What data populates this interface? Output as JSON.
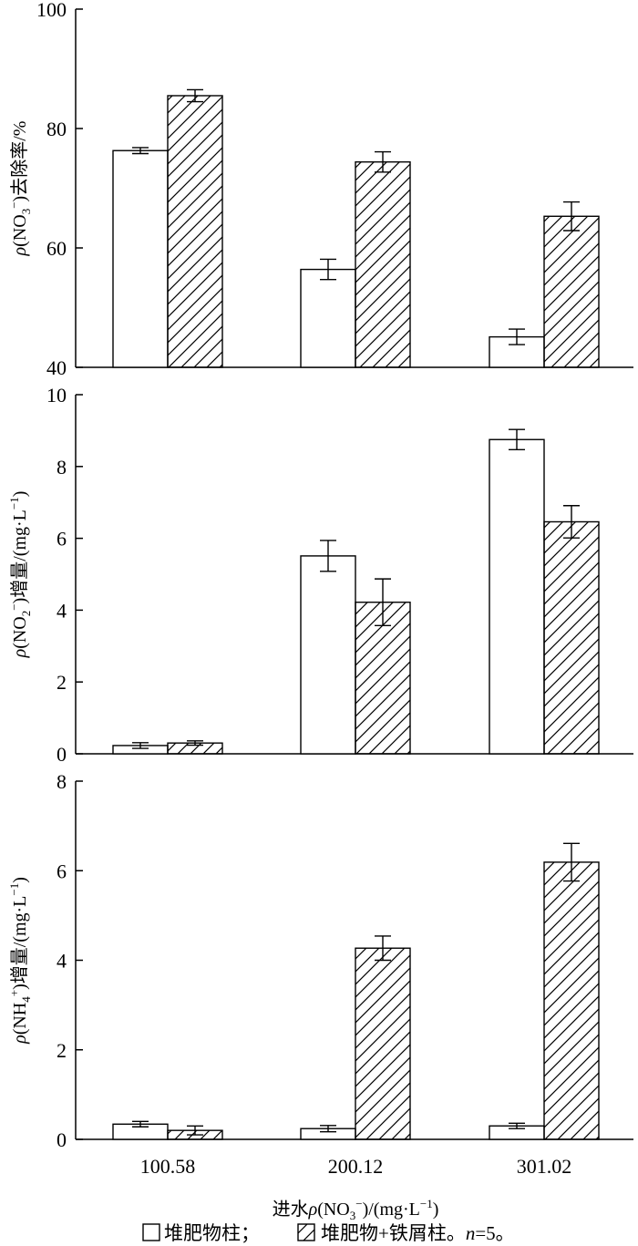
{
  "chart_data": {
    "type": "bar",
    "categories": [
      "100.58",
      "200.12",
      "301.02"
    ],
    "series_names": [
      "堆肥物柱",
      "堆肥物+铁屑柱"
    ],
    "series_styles": [
      "open",
      "hatched"
    ],
    "xlabel": {
      "pre": "进水",
      "rho": "ρ",
      "mid": "(NO",
      "sub": "3",
      "sup": "−",
      "post": ")/(mg·L",
      "sup2": "−1",
      "end": ")"
    },
    "legend": {
      "item1": "堆肥物柱；",
      "item2": "堆肥物+铁屑柱。",
      "n_label": "n",
      "n_value": "=5。"
    },
    "panels": [
      {
        "id": "nitrate-removal",
        "ylabel": {
          "rho": "ρ",
          "pre": "(NO",
          "sub": "3",
          "sup": "−",
          "post": ")去除率/%"
        },
        "ylim": [
          40,
          100
        ],
        "ticks": [
          "40",
          "60",
          "80",
          "100"
        ],
        "series": [
          {
            "name": "堆肥物柱",
            "values": [
              76.3,
              56.4,
              45.1
            ],
            "errors": [
              0.5,
              1.7,
              1.3
            ]
          },
          {
            "name": "堆肥物+铁屑柱",
            "values": [
              85.5,
              74.4,
              65.3
            ],
            "errors": [
              1.0,
              1.7,
              2.4
            ]
          }
        ]
      },
      {
        "id": "nitrite-increase",
        "ylabel": {
          "rho": "ρ",
          "pre": "(NO",
          "sub": "2",
          "sup": "−",
          "post": ")增量/(mg·L",
          "sup2": "−1",
          "end": ")"
        },
        "ylim": [
          0,
          10
        ],
        "ticks": [
          "0",
          "2",
          "4",
          "6",
          "8",
          "10"
        ],
        "series": [
          {
            "name": "堆肥物柱",
            "values": [
              0.23,
              5.51,
              8.75
            ],
            "errors": [
              0.08,
              0.43,
              0.28
            ]
          },
          {
            "name": "堆肥物+铁屑柱",
            "values": [
              0.3,
              4.22,
              6.46
            ],
            "errors": [
              0.06,
              0.65,
              0.45
            ]
          }
        ]
      },
      {
        "id": "ammonium-increase",
        "ylabel": {
          "rho": "ρ",
          "pre": "(NH",
          "sub": "4",
          "sup": "+",
          "post": ")增量/(mg·L",
          "sup2": "−1",
          "end": ")"
        },
        "ylim": [
          0,
          8
        ],
        "ticks": [
          "0",
          "2",
          "4",
          "6",
          "8"
        ],
        "series": [
          {
            "name": "堆肥物柱",
            "values": [
              0.34,
              0.24,
              0.3
            ],
            "errors": [
              0.06,
              0.07,
              0.06
            ]
          },
          {
            "name": "堆肥物+铁屑柱",
            "values": [
              0.2,
              4.27,
              6.19
            ],
            "errors": [
              0.1,
              0.27,
              0.42
            ]
          }
        ]
      }
    ]
  }
}
